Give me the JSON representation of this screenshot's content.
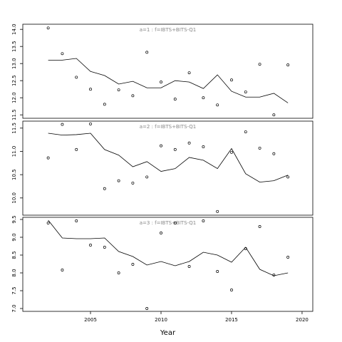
{
  "chart_data": [
    {
      "type": "line",
      "title": "a=1  :  f=IBTS+BITS-Q1",
      "title_color": "#888888",
      "x": [
        2002,
        2003,
        2004,
        2005,
        2006,
        2007,
        2008,
        2009,
        2010,
        2011,
        2012,
        2013,
        2014,
        2015,
        2016,
        2017,
        2018,
        2019
      ],
      "xlim": [
        2000.2,
        2020.76
      ],
      "ylim": [
        11.4,
        14.15
      ],
      "yticks": [
        11.5,
        {
          "value": 12.0,
          "label": "12.0"
        },
        12.5,
        {
          "value": 13.0,
          "label": "13.0"
        },
        13.5,
        {
          "value": 14.0,
          "label": "14.0"
        }
      ],
      "series": [
        {
          "color": "#000000",
          "marker": "circle",
          "values": [
            14.04,
            13.29,
            12.6,
            12.25,
            11.81,
            12.23,
            12.06,
            13.33,
            12.46,
            11.96,
            12.73,
            12.0,
            11.79,
            12.52,
            12.17,
            12.98,
            11.5,
            12.96
          ]
        },
        {
          "color": "#000000",
          "marker": "none",
          "values": [
            13.1,
            13.1,
            13.15,
            12.77,
            12.65,
            12.4,
            12.48,
            12.29,
            12.29,
            12.5,
            12.46,
            12.27,
            12.67,
            12.19,
            12.02,
            12.02,
            12.13,
            11.85
          ]
        }
      ]
    },
    {
      "type": "line",
      "title": "a=2  :  f=IBTS+BITS-Q1",
      "title_color": "#888888",
      "x": [
        2002,
        2003,
        2004,
        2005,
        2006,
        2007,
        2008,
        2009,
        2010,
        2011,
        2012,
        2013,
        2014,
        2015,
        2016,
        2017,
        2018,
        2019
      ],
      "xlim": [
        2000.2,
        2020.76
      ],
      "ylim": [
        9.63,
        11.65
      ],
      "yticks": [
        {
          "value": 10.0,
          "label": "10.0"
        },
        10.5,
        {
          "value": 11.0,
          "label": "11.0"
        },
        11.5
      ],
      "series": [
        {
          "color": "#000000",
          "marker": "circle",
          "values": [
            10.86,
            11.58,
            11.04,
            11.59,
            10.2,
            10.37,
            10.32,
            10.45,
            11.12,
            11.04,
            11.18,
            11.1,
            9.71,
            10.98,
            11.42,
            11.07,
            10.95,
            10.45
          ]
        },
        {
          "color": "#000000",
          "marker": "none",
          "values": [
            11.39,
            11.35,
            11.36,
            11.39,
            11.04,
            10.92,
            10.67,
            10.78,
            10.57,
            10.63,
            10.87,
            10.81,
            10.63,
            11.06,
            10.52,
            10.34,
            10.37,
            10.49
          ]
        }
      ]
    },
    {
      "type": "line",
      "title": "a=3  :  f=IBTS+BITS-Q1",
      "title_color": "#888888",
      "xlabel": "Year",
      "x": [
        2002,
        2003,
        2004,
        2005,
        2006,
        2007,
        2008,
        2009,
        2010,
        2011,
        2012,
        2013,
        2014,
        2015,
        2016,
        2017,
        2018,
        2019
      ],
      "xlim": [
        2000.2,
        2020.76
      ],
      "ylim": [
        6.92,
        9.56
      ],
      "xticks": [
        2005,
        2010,
        2015,
        2020
      ],
      "yticks": [
        {
          "value": 7.0,
          "label": "7.0"
        },
        7.5,
        {
          "value": 8.0,
          "label": "8.0"
        },
        8.5,
        {
          "value": 9.0,
          "label": "9.0"
        },
        9.5
      ],
      "series": [
        {
          "color": "#000000",
          "marker": "circle",
          "values": [
            9.4,
            8.08,
            9.46,
            8.78,
            8.72,
            8.0,
            8.24,
            7.0,
            9.12,
            9.4,
            8.18,
            9.46,
            8.04,
            7.52,
            8.68,
            9.3,
            7.94,
            8.44
          ]
        },
        {
          "color": "#000000",
          "marker": "none",
          "values": [
            9.48,
            8.98,
            8.96,
            8.96,
            8.98,
            8.6,
            8.46,
            8.22,
            8.32,
            8.2,
            8.32,
            8.58,
            8.5,
            8.3,
            8.72,
            8.1,
            7.92,
            8.0
          ]
        }
      ]
    }
  ]
}
